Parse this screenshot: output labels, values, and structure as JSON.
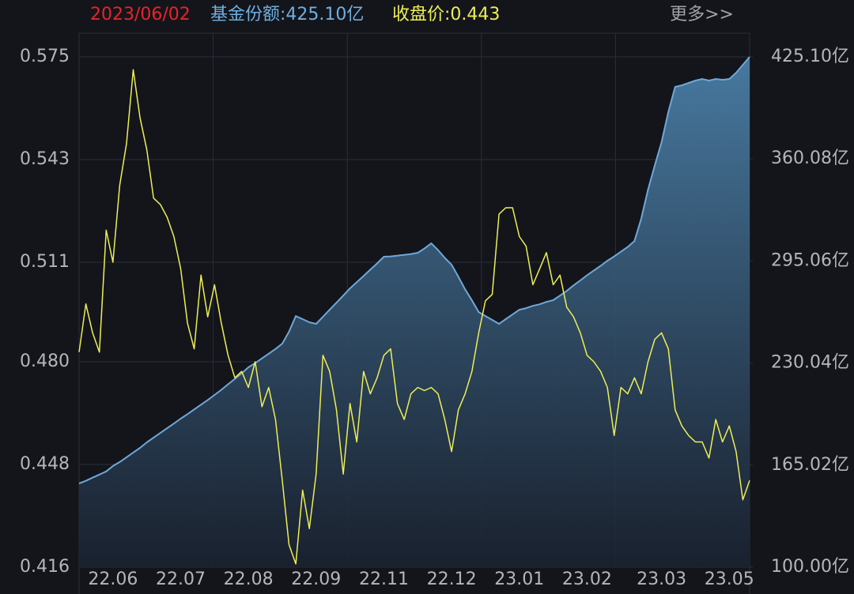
{
  "chart_data": {
    "type": "line",
    "date": "2023/06/02",
    "more_link": "更多>>",
    "categories": [
      null,
      null,
      null,
      null,
      null,
      "22.06",
      null,
      null,
      null,
      null,
      null,
      null,
      null,
      null,
      null,
      "22.07",
      null,
      null,
      null,
      null,
      null,
      null,
      null,
      null,
      null,
      "22.08",
      null,
      null,
      null,
      null,
      null,
      null,
      null,
      null,
      null,
      "22.09",
      null,
      null,
      null,
      null,
      null,
      null,
      null,
      null,
      null,
      "22.11",
      null,
      null,
      null,
      null,
      null,
      null,
      null,
      null,
      null,
      "22.12",
      null,
      null,
      null,
      null,
      null,
      null,
      null,
      null,
      null,
      "23.01",
      null,
      null,
      null,
      null,
      null,
      null,
      null,
      null,
      null,
      "23.02",
      null,
      null,
      null,
      null,
      null,
      null,
      null,
      null,
      null,
      null,
      "23.03",
      null,
      null,
      null,
      null,
      null,
      null,
      null,
      null,
      null,
      "23.05",
      null,
      null,
      null
    ],
    "series": [
      {
        "name": "基金份额:425.10亿",
        "color": "#6fa8d8",
        "axis": "y2",
        "style": "area",
        "values": [
          153.3,
          155,
          157,
          159,
          161,
          164.4,
          167,
          170,
          173,
          176,
          179.5,
          182.5,
          185.5,
          188.5,
          191.5,
          194.6,
          197.5,
          200.5,
          203.5,
          206.5,
          209.7,
          213,
          216.5,
          220,
          223.5,
          227.3,
          230,
          233,
          236,
          239,
          242.4,
          250,
          260,
          258,
          256,
          255,
          259.5,
          264,
          268.5,
          273,
          277.6,
          281.5,
          285.5,
          289.5,
          293.5,
          297.8,
          298,
          298.5,
          299,
          299.5,
          300.3,
          303,
          306.3,
          302,
          297,
          292.7,
          285,
          277,
          270,
          262.5,
          260,
          257.5,
          255,
          258,
          261,
          264,
          265,
          266.5,
          267.5,
          269,
          270.1,
          273,
          276,
          279.5,
          282.7,
          286,
          289,
          292,
          295.2,
          298,
          301,
          304,
          307.8,
          322,
          340.5,
          356,
          370.7,
          390,
          406,
          407,
          408.5,
          410,
          411,
          410,
          411,
          410.5,
          411,
          415,
          420,
          425.1
        ]
      },
      {
        "name": "收盘价:0.443",
        "color": "#eeee55",
        "axis": "y",
        "values": [
          0.483,
          0.498,
          0.489,
          0.483,
          0.521,
          0.511,
          0.535,
          0.548,
          0.571,
          0.556,
          0.546,
          0.531,
          0.529,
          0.525,
          0.519,
          0.509,
          0.492,
          0.484,
          0.507,
          0.494,
          0.504,
          0.492,
          0.482,
          0.475,
          0.477,
          0.472,
          0.48,
          0.466,
          0.472,
          0.462,
          0.443,
          0.423,
          0.417,
          0.44,
          0.428,
          0.445,
          0.482,
          0.477,
          0.465,
          0.445,
          0.467,
          0.455,
          0.477,
          0.47,
          0.475,
          0.482,
          0.484,
          0.467,
          0.462,
          0.47,
          0.472,
          0.471,
          0.472,
          0.47,
          0.462,
          0.452,
          0.465,
          0.47,
          0.477,
          0.489,
          0.499,
          0.501,
          0.526,
          0.528,
          0.528,
          0.519,
          0.516,
          0.504,
          0.509,
          0.514,
          0.504,
          0.507,
          0.497,
          0.494,
          0.489,
          0.482,
          0.48,
          0.477,
          0.472,
          0.457,
          0.472,
          0.47,
          0.475,
          0.47,
          0.48,
          0.487,
          0.489,
          0.484,
          0.465,
          0.46,
          0.457,
          0.455,
          0.455,
          0.45,
          0.462,
          0.455,
          0.46,
          0.452,
          0.437,
          0.443
        ]
      }
    ],
    "ylim": [
      0.416,
      0.575
    ],
    "yticks": [
      0.575,
      0.543,
      0.511,
      {
        "value": 0.48,
        "label": "0.480"
      },
      0.448,
      0.416
    ],
    "y2lim": [
      100,
      425.1
    ],
    "y2ticks": [
      {
        "value": 425.1,
        "label": "425.10亿"
      },
      {
        "value": 360.08,
        "label": "360.08亿"
      },
      {
        "value": 295.06,
        "label": "295.06亿"
      },
      {
        "value": 230.04,
        "label": "230.04亿"
      },
      {
        "value": 165.02,
        "label": "165.02亿"
      },
      {
        "value": 100,
        "label": "100.00亿"
      }
    ],
    "grid": true
  }
}
